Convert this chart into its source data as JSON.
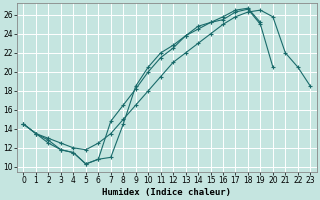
{
  "xlabel": "Humidex (Indice chaleur)",
  "bg_color": "#c5e5e0",
  "line_color": "#1a6b6b",
  "grid_color": "#ffffff",
  "xlim": [
    -0.5,
    23.5
  ],
  "ylim": [
    9.5,
    27.2
  ],
  "xticks": [
    0,
    1,
    2,
    3,
    4,
    5,
    6,
    7,
    8,
    9,
    10,
    11,
    12,
    13,
    14,
    15,
    16,
    17,
    18,
    19,
    20,
    21,
    22,
    23
  ],
  "yticks": [
    10,
    12,
    14,
    16,
    18,
    20,
    22,
    24,
    26
  ],
  "line1_xy": [
    [
      0,
      14.5
    ],
    [
      1,
      13.5
    ],
    [
      2,
      13.0
    ],
    [
      3,
      12.5
    ],
    [
      4,
      12.0
    ],
    [
      5,
      11.8
    ],
    [
      6,
      12.5
    ],
    [
      7,
      13.5
    ],
    [
      8,
      15.0
    ],
    [
      9,
      16.5
    ],
    [
      10,
      18.0
    ],
    [
      11,
      19.5
    ],
    [
      12,
      21.0
    ],
    [
      13,
      22.0
    ],
    [
      14,
      23.0
    ],
    [
      15,
      24.0
    ],
    [
      16,
      25.0
    ],
    [
      17,
      25.8
    ],
    [
      18,
      26.3
    ],
    [
      19,
      26.5
    ],
    [
      20,
      25.8
    ],
    [
      21,
      22.0
    ],
    [
      22,
      20.5
    ],
    [
      23,
      18.5
    ]
  ],
  "line2_xy": [
    [
      0,
      14.5
    ],
    [
      1,
      13.5
    ],
    [
      2,
      12.8
    ],
    [
      3,
      11.8
    ],
    [
      4,
      11.5
    ],
    [
      5,
      10.3
    ],
    [
      6,
      10.8
    ],
    [
      7,
      14.8
    ],
    [
      8,
      16.5
    ],
    [
      9,
      18.2
    ],
    [
      10,
      20.0
    ],
    [
      11,
      21.5
    ],
    [
      12,
      22.5
    ],
    [
      13,
      23.8
    ],
    [
      14,
      24.5
    ],
    [
      15,
      25.2
    ],
    [
      16,
      25.5
    ],
    [
      17,
      26.3
    ],
    [
      18,
      26.6
    ],
    [
      19,
      25.0
    ],
    [
      20,
      20.5
    ]
  ],
  "line3_xy": [
    [
      0,
      14.5
    ],
    [
      1,
      13.5
    ],
    [
      2,
      12.5
    ],
    [
      3,
      11.8
    ],
    [
      4,
      11.5
    ],
    [
      5,
      10.3
    ],
    [
      6,
      10.8
    ],
    [
      7,
      11.0
    ],
    [
      8,
      14.5
    ],
    [
      9,
      18.5
    ],
    [
      10,
      20.5
    ],
    [
      11,
      22.0
    ],
    [
      12,
      22.8
    ],
    [
      13,
      23.8
    ],
    [
      14,
      24.8
    ],
    [
      15,
      25.2
    ],
    [
      16,
      25.8
    ],
    [
      17,
      26.5
    ],
    [
      18,
      26.7
    ],
    [
      19,
      25.2
    ]
  ]
}
